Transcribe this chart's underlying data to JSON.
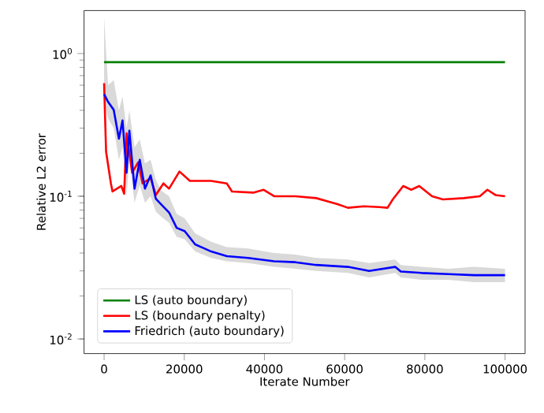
{
  "chart_data": {
    "type": "line",
    "xlabel": "Iterate Number",
    "ylabel": "Relative L2 error",
    "log": "y",
    "grid": false,
    "legend": "bottom left",
    "xlim": [
      -5000,
      105000
    ],
    "ylim": [
      0.0079,
      2.0
    ],
    "xticks": [
      0,
      20000,
      40000,
      60000,
      80000,
      100000
    ],
    "yticks": [
      {
        "value": 0.01,
        "label": "10$^{-2}$"
      },
      {
        "value": 0.1,
        "label": "10$^{-1}$"
      },
      {
        "value": 1,
        "label": "10$^{0}$"
      }
    ],
    "series": [
      {
        "name": "LS (auto boundary)",
        "color": "#008000",
        "x": [
          0,
          100000
        ],
        "values": [
          0.87,
          0.87
        ]
      },
      {
        "name": "LS (boundary penalty)",
        "color": "#ff0000",
        "x": [
          0,
          500,
          1700,
          2100,
          4300,
          5000,
          5600,
          7000,
          8500,
          9600,
          11600,
          12900,
          14800,
          16200,
          18800,
          21400,
          26700,
          30600,
          31900,
          37200,
          39800,
          42400,
          47700,
          52900,
          58200,
          60800,
          64800,
          68700,
          70700,
          72000,
          74600,
          76600,
          78600,
          81800,
          84500,
          89700,
          93700,
          95600,
          97600,
          100000
        ],
        "values": [
          0.62,
          0.205,
          0.123,
          0.108,
          0.118,
          0.104,
          0.276,
          0.146,
          0.173,
          0.123,
          0.134,
          0.102,
          0.123,
          0.113,
          0.149,
          0.128,
          0.128,
          0.123,
          0.108,
          0.106,
          0.111,
          0.1,
          0.1,
          0.097,
          0.088,
          0.083,
          0.085,
          0.084,
          0.083,
          0.095,
          0.118,
          0.111,
          0.118,
          0.1,
          0.095,
          0.097,
          0.1,
          0.111,
          0.102,
          0.1
        ]
      },
      {
        "name": "Friedrich (auto boundary)",
        "color": "#0000ff",
        "x": [
          0,
          1000,
          2400,
          3700,
          4600,
          5600,
          6300,
          7600,
          8900,
          10200,
          11600,
          12900,
          14200,
          16200,
          18100,
          20100,
          22700,
          26700,
          30600,
          35900,
          42400,
          47700,
          52900,
          60800,
          66100,
          72600,
          74000,
          79200,
          85800,
          92300,
          100000
        ],
        "values": [
          0.52,
          0.458,
          0.403,
          0.253,
          0.34,
          0.146,
          0.288,
          0.113,
          0.18,
          0.113,
          0.14,
          0.096,
          0.088,
          0.077,
          0.06,
          0.057,
          0.046,
          0.041,
          0.038,
          0.037,
          0.035,
          0.0345,
          0.033,
          0.032,
          0.03,
          0.032,
          0.0297,
          0.029,
          0.0285,
          0.028,
          0.028
        ],
        "upper": [
          1.8,
          0.6,
          0.65,
          0.4,
          0.5,
          0.3,
          0.4,
          0.22,
          0.25,
          0.17,
          0.18,
          0.13,
          0.11,
          0.1,
          0.075,
          0.07,
          0.055,
          0.048,
          0.044,
          0.043,
          0.04,
          0.039,
          0.037,
          0.036,
          0.034,
          0.036,
          0.033,
          0.032,
          0.031,
          0.032,
          0.031
        ],
        "lower": [
          0.45,
          0.35,
          0.3,
          0.18,
          0.22,
          0.1,
          0.18,
          0.09,
          0.12,
          0.09,
          0.1,
          0.078,
          0.072,
          0.065,
          0.052,
          0.05,
          0.041,
          0.037,
          0.035,
          0.034,
          0.032,
          0.031,
          0.03,
          0.029,
          0.027,
          0.029,
          0.027,
          0.026,
          0.026,
          0.025,
          0.025
        ]
      }
    ]
  }
}
